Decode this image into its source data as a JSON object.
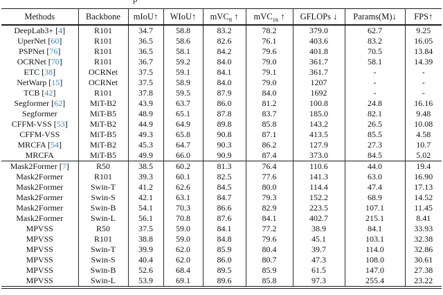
{
  "caption_fragment": "p",
  "colors": {
    "citation": "#3288c6",
    "rule": "#1a1a1a",
    "text": "#111111"
  },
  "table": {
    "headers": [
      {
        "key": "methods",
        "pre": "Methods"
      },
      {
        "key": "backbone",
        "pre": "Backbone"
      },
      {
        "key": "miou",
        "pre": "mIoU",
        "post": "↑"
      },
      {
        "key": "wiou",
        "pre": "WIoU",
        "post": "↑"
      },
      {
        "key": "mvc8",
        "pre": "mVC",
        "sub": "8",
        "post": " ↑"
      },
      {
        "key": "mvc16",
        "pre": "mVC",
        "sub": "16",
        "post": " ↑"
      },
      {
        "key": "gflops",
        "pre": "GFLOPs",
        "post": " ↓"
      },
      {
        "key": "params",
        "pre": "Params(M)",
        "post": "↓"
      },
      {
        "key": "fps",
        "pre": "FPS",
        "post": "↑"
      }
    ],
    "groups": [
      {
        "rows": [
          {
            "method": "DeepLab3+",
            "cite": "4",
            "backbone": "R101",
            "vals": [
              "34.7",
              "58.8",
              "83.2",
              "78.2",
              "379.0",
              "62.7",
              "9.25"
            ]
          },
          {
            "method": "UperNet",
            "cite": "60",
            "backbone": "R101",
            "vals": [
              "36.5",
              "58.6",
              "82.6",
              "76.1",
              "403.6",
              "83.2",
              "16.05"
            ]
          },
          {
            "method": "PSPNet",
            "cite": "76",
            "backbone": "R101",
            "vals": [
              "36.5",
              "58.1",
              "84.2",
              "79.6",
              "401.8",
              "70.5",
              "13.84"
            ]
          },
          {
            "method": "OCRNet",
            "cite": "70",
            "backbone": "R101",
            "vals": [
              "36.7",
              "59.2",
              "84.0",
              "79.0",
              "361.7",
              "58.1",
              "14.39"
            ]
          },
          {
            "method": "ETC",
            "cite": "38",
            "backbone": "OCRNet",
            "vals": [
              "37.5",
              "59.1",
              "84.1",
              "79.1",
              "361.7",
              "-",
              "-"
            ]
          },
          {
            "method": "NetWarp",
            "cite": "15",
            "backbone": "OCRNet",
            "vals": [
              "37.5",
              "58.9",
              "84.0",
              "79.0",
              "1207",
              "-",
              "-"
            ]
          },
          {
            "method": "TCB",
            "cite": "42",
            "backbone": "R101",
            "vals": [
              "37.8",
              "59.5",
              "87.9",
              "84.0",
              "1692",
              "-",
              "-"
            ]
          },
          {
            "method": "Segformer",
            "cite": "62",
            "backbone": "MiT-B2",
            "vals": [
              "43.9",
              "63.7",
              "86.0",
              "81.2",
              "100.8",
              "24.8",
              "16.16"
            ]
          },
          {
            "method": "Segformer",
            "cite": "",
            "backbone": "MiT-B5",
            "vals": [
              "48.9",
              "65.1",
              "87.8",
              "83.7",
              "185.0",
              "82.1",
              "9.48"
            ]
          },
          {
            "method": "CFFM-VSS",
            "cite": "53",
            "backbone": "MiT-B2",
            "vals": [
              "44.9",
              "64.9",
              "89.8",
              "85.8",
              "143.2",
              "26.5",
              "10.08"
            ]
          },
          {
            "method": "CFFM-VSS",
            "cite": "",
            "backbone": "MiT-B5",
            "vals": [
              "49.3",
              "65.8",
              "90.8",
              "87.1",
              "413.5",
              "85.5",
              "4.58"
            ]
          },
          {
            "method": "MRCFA",
            "cite": "54",
            "backbone": "MiT-B2",
            "vals": [
              "45.3",
              "64.7",
              "90.3",
              "86.2",
              "127.9",
              "27.3",
              "10.7"
            ]
          },
          {
            "method": "MRCFA",
            "cite": "",
            "backbone": "MiT-B5",
            "vals": [
              "49.9",
              "66.0",
              "90.9",
              "87.4",
              "373.0",
              "84.5",
              "5.02"
            ]
          }
        ]
      },
      {
        "rows": [
          {
            "method": "Mask2Former",
            "cite": "7",
            "backbone": "R50",
            "vals": [
              "38.5",
              "60.2",
              "81.3",
              "76.4",
              "110.6",
              "44.0",
              "19.4"
            ]
          },
          {
            "method": "Mask2Former",
            "cite": "",
            "backbone": "R101",
            "vals": [
              "39.3",
              "60.1",
              "82.5",
              "77.6",
              "141.3",
              "63.0",
              "16.90"
            ]
          },
          {
            "method": "Mask2Former",
            "cite": "",
            "backbone": "Swin-T",
            "vals": [
              "41.2",
              "62.6",
              "84.5",
              "80.0",
              "114.4",
              "47.4",
              "17.13"
            ]
          },
          {
            "method": "Mask2Former",
            "cite": "",
            "backbone": "Swin-S",
            "vals": [
              "42.1",
              "63.1",
              "84.7",
              "79.3",
              "152.2",
              "68.9",
              "14.52"
            ]
          },
          {
            "method": "Mask2Former",
            "cite": "",
            "backbone": "Swin-B",
            "vals": [
              "54.1",
              "70.3",
              "86.6",
              "82.9",
              "223.5",
              "107.1",
              "11.45"
            ]
          },
          {
            "method": "Mask2Former",
            "cite": "",
            "backbone": "Swin-L",
            "vals": [
              "56.1",
              "70.8",
              "87.6",
              "84.1",
              "402.7",
              "215.1",
              "8.41"
            ]
          },
          {
            "method": "MPVSS",
            "cite": "",
            "backbone": "R50",
            "vals": [
              "37.5",
              "59.0",
              "84.1",
              "77.2",
              "38.9",
              "84.1",
              "33.93"
            ]
          },
          {
            "method": "MPVSS",
            "cite": "",
            "backbone": "R101",
            "vals": [
              "38.8",
              "59.0",
              "84.8",
              "79.6",
              "45.1",
              "103.1",
              "32.38"
            ]
          },
          {
            "method": "MPVSS",
            "cite": "",
            "backbone": "Swin-T",
            "vals": [
              "39.9",
              "62.0",
              "85.9",
              "80.4",
              "39.7",
              "114.0",
              "32.86"
            ]
          },
          {
            "method": "MPVSS",
            "cite": "",
            "backbone": "Swin-S",
            "vals": [
              "40.4",
              "62.0",
              "86.0",
              "80.7",
              "47.3",
              "108.0",
              "30.61"
            ]
          },
          {
            "method": "MPVSS",
            "cite": "",
            "backbone": "Swin-B",
            "vals": [
              "52.6",
              "68.4",
              "89.5",
              "85.9",
              "61.5",
              "147.0",
              "27.38"
            ]
          },
          {
            "method": "MPVSS",
            "cite": "",
            "backbone": "Swin-L",
            "vals": [
              "53.9",
              "69.1",
              "89.6",
              "85.8",
              "97.3",
              "255.4",
              "23.22"
            ]
          }
        ]
      }
    ]
  }
}
